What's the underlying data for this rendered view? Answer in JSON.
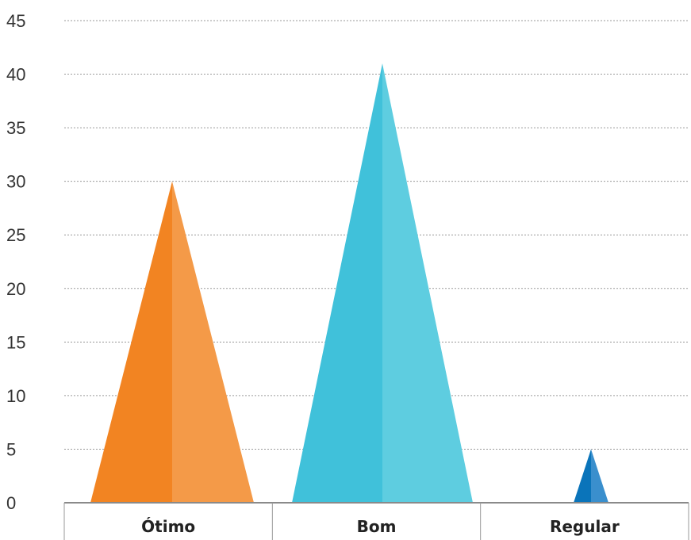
{
  "chart_data": {
    "type": "bar",
    "categories": [
      "Ótimo",
      "Bom",
      "Regular"
    ],
    "values": [
      30,
      41,
      5
    ],
    "ylim": [
      0,
      45
    ],
    "yticks": [
      0,
      5,
      10,
      15,
      20,
      25,
      30,
      35,
      40,
      45
    ],
    "grid": true,
    "bar_shape": "triangle",
    "colors": [
      {
        "dark": "#f28422",
        "light": "#f49a48"
      },
      {
        "dark": "#40c1da",
        "light": "#5ecde0"
      },
      {
        "dark": "#0a74ba",
        "light": "#3a8fcd"
      }
    ]
  }
}
